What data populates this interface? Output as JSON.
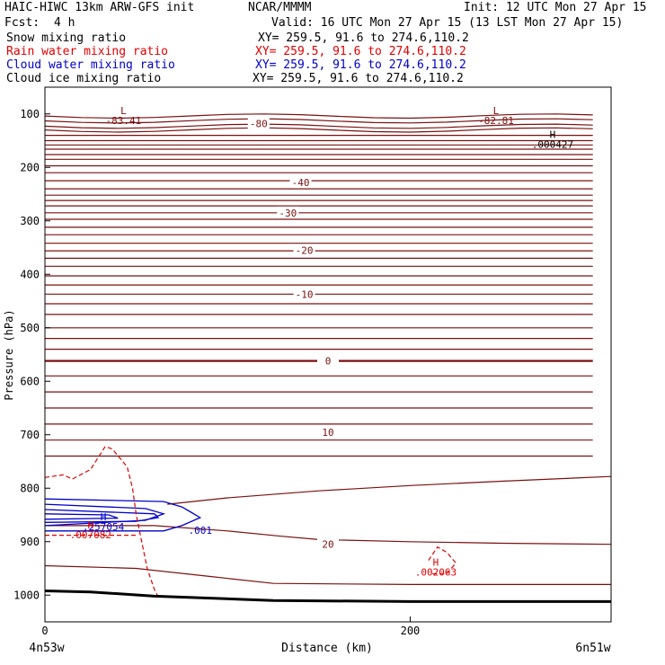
{
  "header": {
    "title": "HAIC-HIWC 13km ARW-GFS init",
    "org": "NCAR/MMMM",
    "init": "Init: 12 UTC Mon 27 Apr 15",
    "fcst_label": "Fcst:",
    "fcst_value": "4 h",
    "valid": "Valid: 16 UTC Mon 27 Apr 15 (13 LST Mon 27 Apr 15)"
  },
  "fields": [
    {
      "name": "Snow mixing ratio",
      "xy": "XY= 259.5, 91.6 to 274.6,110.2",
      "color": "#000000"
    },
    {
      "name": "Rain water mixing ratio",
      "xy": "XY= 259.5, 91.6 to 274.6,110.2",
      "color": "#e00000"
    },
    {
      "name": "Cloud water mixing ratio",
      "xy": "XY= 259.5, 91.6 to 274.6,110.2",
      "color": "#0000cc"
    },
    {
      "name": "Cloud ice mixing ratio",
      "xy": "XY= 259.5, 91.6 to 274.6,110.2",
      "color": "#000000"
    }
  ],
  "chart_data": {
    "type": "cross-section contour",
    "xlabel": "Distance (km)",
    "ylabel": "Pressure (hPa)",
    "xlim": [
      0,
      310
    ],
    "ylim": [
      1050,
      50
    ],
    "xticks": [
      0,
      200
    ],
    "yticks": [
      100,
      200,
      300,
      400,
      500,
      600,
      700,
      800,
      900,
      1000
    ],
    "left_endpoint": "4n53w",
    "right_endpoint": "6n51w",
    "colors": {
      "temperature": "#7a1010",
      "rain": "#e00000",
      "cloud_water": "#0000cc",
      "terrain": "#000000"
    },
    "temperature_labels": [
      {
        "text": "-80",
        "x": 117,
        "p": 118
      },
      {
        "text": "-40",
        "x": 140,
        "p": 228
      },
      {
        "text": "-30",
        "x": 133,
        "p": 285
      },
      {
        "text": "-20",
        "x": 142,
        "p": 355
      },
      {
        "text": "-10",
        "x": 142,
        "p": 437
      },
      {
        "text": "0",
        "x": 155,
        "p": 562
      },
      {
        "text": "10",
        "x": 155,
        "p": 695
      },
      {
        "text": "20",
        "x": 155,
        "p": 905
      }
    ],
    "extrema": [
      {
        "mark": "L",
        "value": "-83.41",
        "x": 43,
        "p": 100,
        "color": "#7a1010"
      },
      {
        "mark": "L",
        "value": "-82.81",
        "x": 247,
        "p": 100,
        "color": "#7a1010"
      },
      {
        "mark": "H",
        "value": ".000427",
        "x": 278,
        "p": 145,
        "color": "#000000"
      },
      {
        "mark": "H",
        "value": ".257054",
        "x": 32,
        "p": 860,
        "color": "#0000cc"
      },
      {
        "mark": "H",
        "value": ".007082",
        "x": 25,
        "p": 875,
        "color": "#e00000"
      },
      {
        "mark": "H",
        "value": ".002063",
        "x": 214,
        "p": 945,
        "color": "#e00000"
      }
    ],
    "cloud_water_contour_label": {
      "text": ".001",
      "x": 85,
      "p": 885
    }
  }
}
